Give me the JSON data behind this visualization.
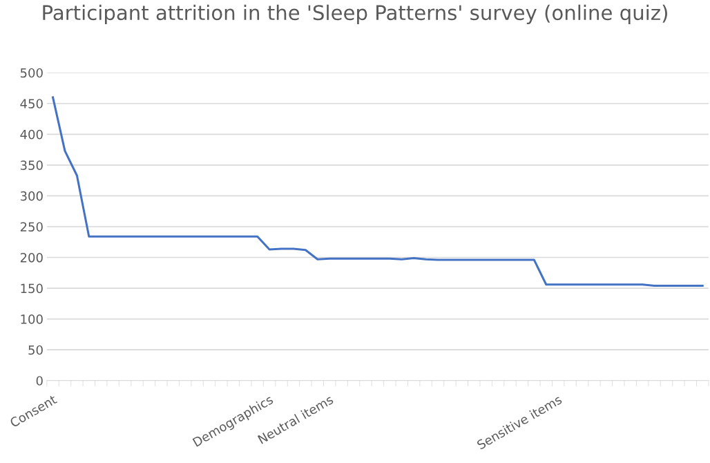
{
  "chart_data": {
    "type": "line",
    "title": "Participant attrition in the 'Sleep Patterns' survey (online quiz)",
    "categories": [
      "Consent",
      null,
      null,
      null,
      null,
      null,
      null,
      null,
      null,
      null,
      null,
      null,
      null,
      null,
      null,
      null,
      null,
      null,
      "Demographics",
      null,
      null,
      null,
      null,
      "Neutral items",
      null,
      null,
      null,
      null,
      null,
      null,
      null,
      null,
      null,
      null,
      null,
      null,
      null,
      null,
      null,
      null,
      null,
      null,
      "Sensitive items",
      null,
      null,
      null,
      null,
      null,
      null,
      null,
      null,
      null,
      null,
      null,
      null
    ],
    "series": [
      {
        "color": "#4472c4",
        "values": [
          460,
          373,
          333,
          234,
          234,
          234,
          234,
          234,
          234,
          234,
          234,
          234,
          234,
          234,
          234,
          234,
          234,
          234,
          213,
          214,
          214,
          212,
          197,
          198,
          198,
          198,
          198,
          198,
          198,
          197,
          199,
          197,
          196,
          196,
          196,
          196,
          196,
          196,
          196,
          196,
          196,
          156,
          156,
          156,
          156,
          156,
          156,
          156,
          156,
          156,
          154,
          154,
          154,
          154,
          154
        ]
      }
    ],
    "ylim": [
      0,
      500
    ],
    "yticks": [
      0,
      50,
      100,
      150,
      200,
      250,
      300,
      350,
      400,
      450,
      500
    ],
    "grid": "y",
    "legend": false,
    "marker": "none",
    "line_style": "solid"
  }
}
